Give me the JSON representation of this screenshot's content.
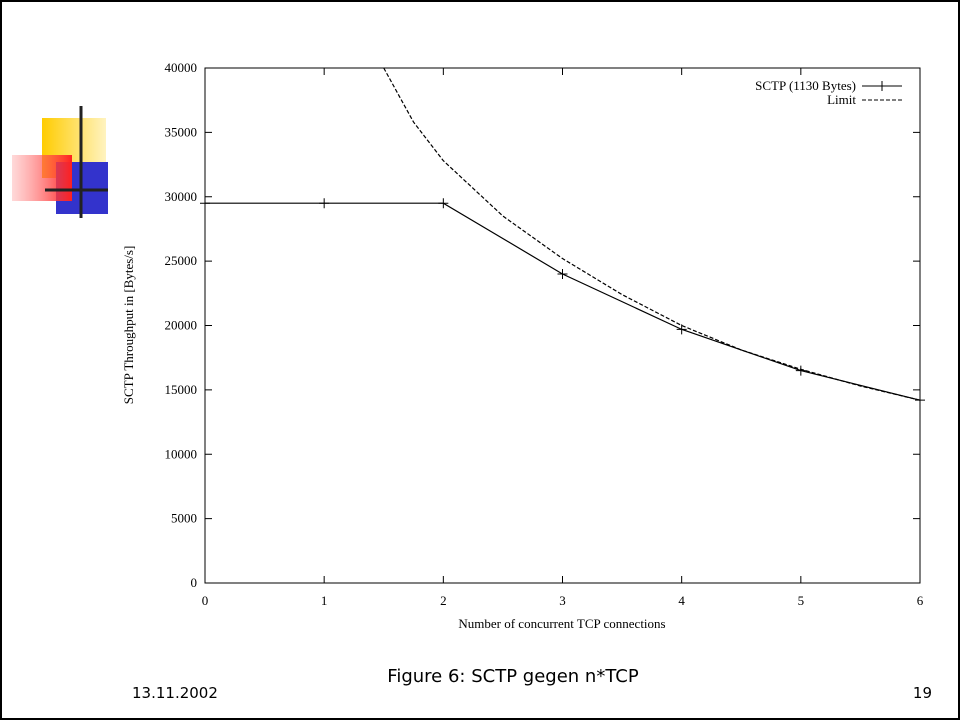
{
  "slide": {
    "caption": "Figure 6: SCTP gegen n*TCP",
    "date": "13.11.2002",
    "page_number": "19"
  },
  "chart_data": {
    "type": "line",
    "xlabel": "Number of concurrent TCP connections",
    "ylabel": "SCTP Throughput in [Bytes/s]",
    "xlim": [
      0,
      6
    ],
    "xticks": [
      0,
      1,
      2,
      3,
      4,
      5,
      6
    ],
    "ylim": [
      0,
      40000
    ],
    "yticks": [
      0,
      5000,
      10000,
      15000,
      20000,
      25000,
      30000,
      35000,
      40000
    ],
    "grid": false,
    "legend": "top-right",
    "series": [
      {
        "name": "SCTP (1130 Bytes)",
        "color": "#000000",
        "dash": false,
        "markers": true,
        "x": [
          0,
          1,
          2,
          3,
          4,
          5,
          6
        ],
        "values": [
          29500,
          29500,
          29500,
          24000,
          19700,
          16500,
          14200
        ]
      },
      {
        "name": "Limit",
        "color": "#000000",
        "dash": true,
        "markers": false,
        "x": [
          1.5,
          1.75,
          2,
          2.5,
          3,
          3.5,
          4,
          4.5,
          5,
          5.5,
          6
        ],
        "values": [
          40000,
          35800,
          32800,
          28500,
          25200,
          22400,
          20000,
          18100,
          16600,
          15300,
          14200
        ]
      }
    ]
  }
}
